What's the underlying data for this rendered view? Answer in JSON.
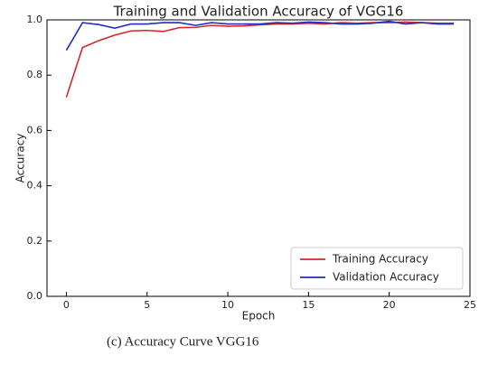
{
  "chart_data": {
    "type": "line",
    "title": "Training and Validation Accuracy of VGG16",
    "xlabel": "Epoch",
    "ylabel": "Accuracy",
    "x": [
      0,
      1,
      2,
      3,
      4,
      5,
      6,
      7,
      8,
      9,
      10,
      11,
      12,
      13,
      14,
      15,
      16,
      17,
      18,
      19,
      20,
      21,
      22,
      23,
      24
    ],
    "series": [
      {
        "name": "Training Accuracy",
        "color": "#d62728",
        "values": [
          0.72,
          0.9,
          0.925,
          0.945,
          0.96,
          0.962,
          0.958,
          0.972,
          0.973,
          0.98,
          0.977,
          0.978,
          0.982,
          0.985,
          0.985,
          0.988,
          0.985,
          0.99,
          0.988,
          0.99,
          0.99,
          0.992,
          0.99,
          0.988,
          0.988
        ]
      },
      {
        "name": "Validation Accuracy",
        "color": "#1f2fbf",
        "values": [
          0.89,
          0.99,
          0.983,
          0.97,
          0.985,
          0.985,
          0.99,
          0.99,
          0.98,
          0.99,
          0.985,
          0.985,
          0.985,
          0.99,
          0.988,
          0.992,
          0.99,
          0.985,
          0.985,
          0.988,
          0.995,
          0.985,
          0.99,
          0.985,
          0.985
        ]
      }
    ],
    "xlim": [
      -1.2,
      25
    ],
    "xticks": [
      0,
      5,
      10,
      15,
      20,
      25
    ],
    "ylim": [
      0,
      1
    ],
    "yticks": [
      {
        "value": 0,
        "label": "0.0"
      },
      {
        "value": 0.2,
        "label": "0.2"
      },
      {
        "value": 0.4,
        "label": "0.4"
      },
      {
        "value": 0.6,
        "label": "0.6"
      },
      {
        "value": 0.8,
        "label": "0.8"
      },
      {
        "value": 1,
        "label": "1.0"
      }
    ],
    "legend": "lower right",
    "grid": false
  },
  "caption": "(c)  Accuracy Curve VGG16"
}
